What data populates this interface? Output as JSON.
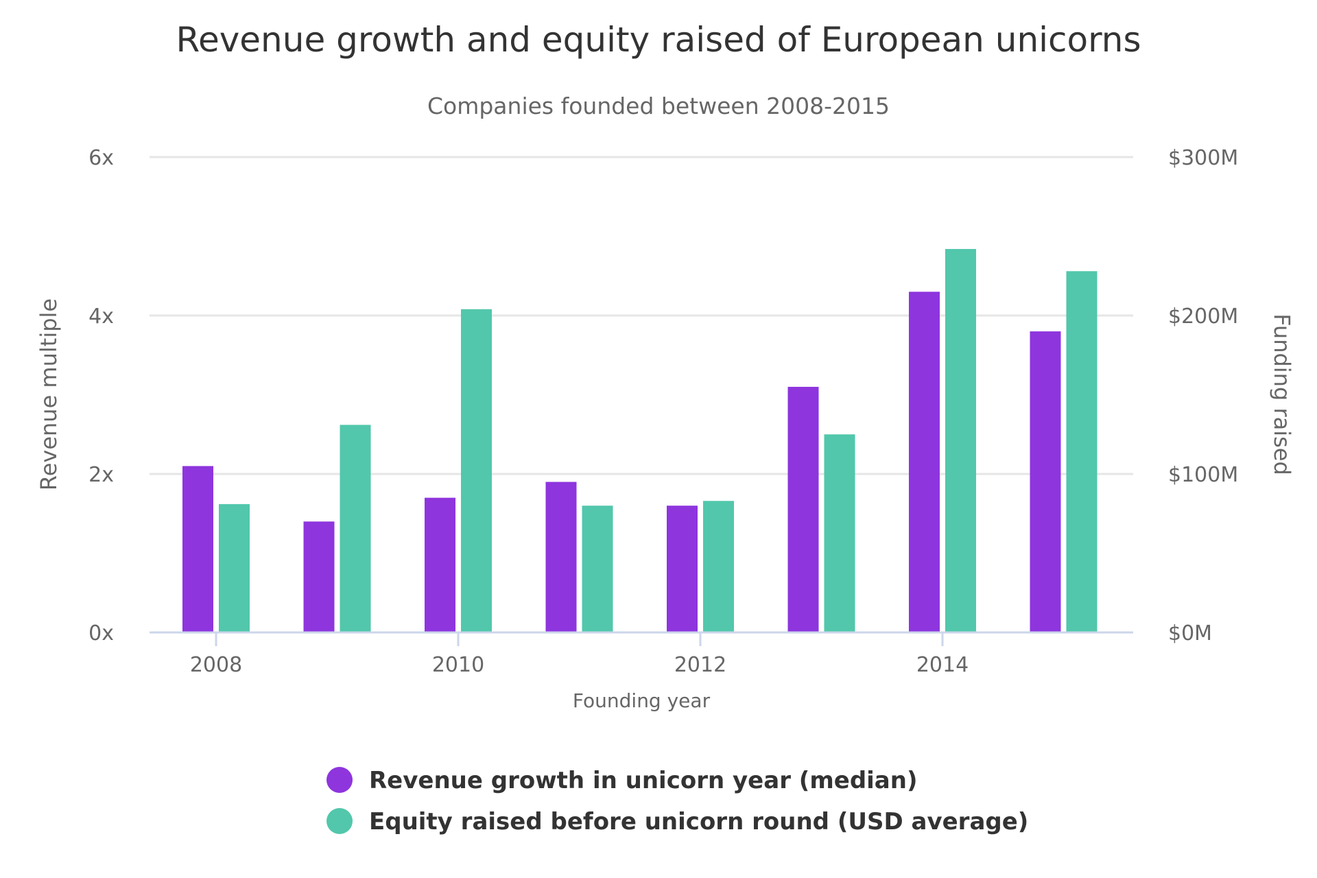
{
  "chart_data": {
    "type": "bar",
    "title": "Revenue growth and equity raised of European unicorns",
    "subtitle": "Companies founded between 2008-2015",
    "x": [
      2008,
      2009,
      2010,
      2011,
      2012,
      2013,
      2014,
      2015
    ],
    "xlabel": "Founding year",
    "x_ticks": [
      "2008",
      "2010",
      "2012",
      "2014"
    ],
    "y_left": {
      "label": "Revenue multiple",
      "range": [
        0,
        6
      ],
      "ticks": [
        "0x",
        "2x",
        "4x",
        "6x"
      ]
    },
    "y_right": {
      "label": "Funding raised",
      "range": [
        0,
        300
      ],
      "unit": "USD millions",
      "ticks": [
        "$0M",
        "$100M",
        "$200M",
        "$300M"
      ]
    },
    "series": [
      {
        "name": "Revenue growth in unicorn year (median)",
        "axis": "left",
        "color": "#8e35de",
        "values": [
          2.1,
          1.4,
          1.7,
          1.9,
          1.6,
          3.1,
          4.3,
          3.8
        ]
      },
      {
        "name": "Equity raised before unicorn round (USD average)",
        "axis": "right",
        "color": "#52c7ab",
        "values": [
          81,
          131,
          204,
          80,
          83,
          125,
          242,
          228
        ]
      }
    ],
    "grid": true,
    "legend_position": "bottom"
  }
}
